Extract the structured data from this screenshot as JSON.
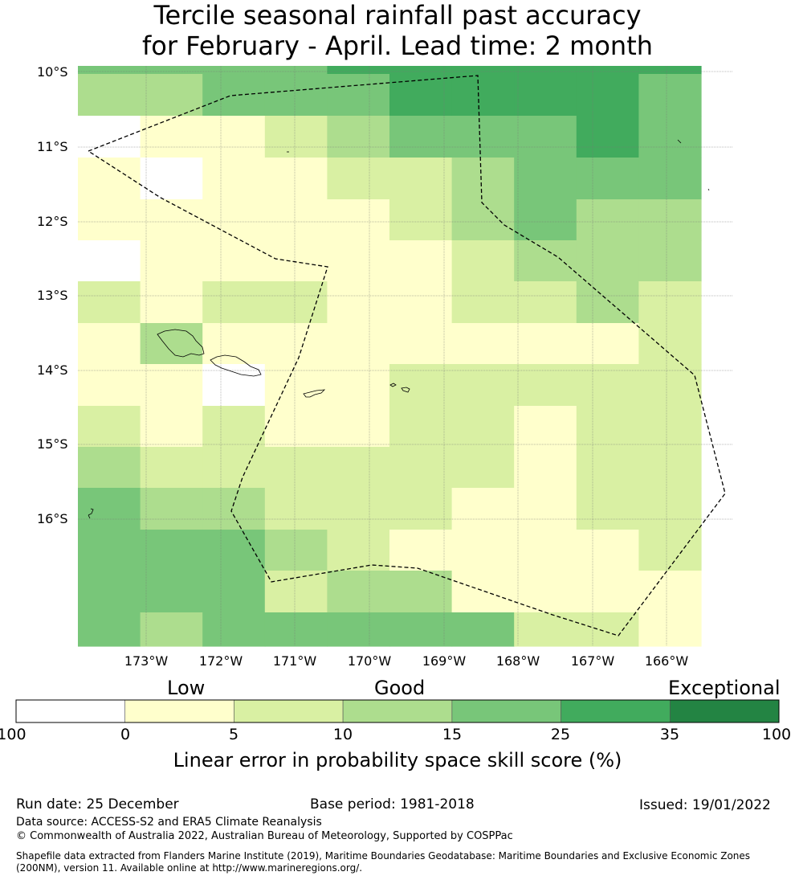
{
  "title": {
    "line1": "Tercile seasonal rainfall past accuracy",
    "line2": "for February - April. Lead time: 2 month"
  },
  "map": {
    "lat_labels": [
      "10°S",
      "11°S",
      "12°S",
      "13°S",
      "14°S",
      "15°S",
      "16°S"
    ],
    "lon_labels": [
      "173°W",
      "172°W",
      "171°W",
      "170°W",
      "169°W",
      "168°W",
      "167°W",
      "166°W"
    ],
    "boundary_style": "dashed",
    "skill_grid_percent_classes": [
      [
        "10-15",
        "10-15",
        "15-25",
        "15-25",
        "15-25",
        "25-35",
        "25-35",
        "25-35",
        "25-35",
        "15-25"
      ],
      [
        "-100-0",
        "0-5",
        "0-5",
        "5-10",
        "10-15",
        "15-25",
        "15-25",
        "15-25",
        "25-35",
        "15-25"
      ],
      [
        "0-5",
        "-100-0",
        "0-5",
        "0-5",
        "5-10",
        "5-10",
        "10-15",
        "15-25",
        "15-25",
        "15-25"
      ],
      [
        "0-5",
        "0-5",
        "0-5",
        "0-5",
        "0-5",
        "5-10",
        "10-15",
        "15-25",
        "10-15",
        "10-15"
      ],
      [
        "-100-0",
        "0-5",
        "0-5",
        "0-5",
        "0-5",
        "0-5",
        "5-10",
        "10-15",
        "10-15",
        "10-15"
      ],
      [
        "5-10",
        "0-5",
        "5-10",
        "5-10",
        "0-5",
        "0-5",
        "5-10",
        "5-10",
        "10-15",
        "5-10"
      ],
      [
        "0-5",
        "10-15",
        "0-5",
        "0-5",
        "0-5",
        "0-5",
        "0-5",
        "0-5",
        "0-5",
        "5-10"
      ],
      [
        "0-5",
        "0-5",
        "-100-0",
        "0-5",
        "0-5",
        "5-10",
        "5-10",
        "5-10",
        "5-10",
        "5-10"
      ],
      [
        "5-10",
        "0-5",
        "5-10",
        "0-5",
        "0-5",
        "5-10",
        "5-10",
        "0-5",
        "5-10",
        "5-10"
      ],
      [
        "10-15",
        "5-10",
        "5-10",
        "5-10",
        "5-10",
        "5-10",
        "5-10",
        "0-5",
        "5-10",
        "5-10"
      ],
      [
        "15-25",
        "10-15",
        "10-15",
        "5-10",
        "5-10",
        "5-10",
        "0-5",
        "0-5",
        "5-10",
        "5-10"
      ],
      [
        "15-25",
        "15-25",
        "15-25",
        "10-15",
        "5-10",
        "0-5",
        "0-5",
        "0-5",
        "0-5",
        "5-10"
      ],
      [
        "15-25",
        "15-25",
        "15-25",
        "5-10",
        "10-15",
        "10-15",
        "0-5",
        "0-5",
        "0-5",
        "0-5"
      ],
      [
        "15-25",
        "10-15",
        "15-25",
        "15-25",
        "15-25",
        "15-25",
        "15-25",
        "5-10",
        "5-10",
        "0-5"
      ]
    ]
  },
  "colorbar": {
    "words": {
      "low": "Low",
      "good": "Good",
      "exceptional": "Exceptional"
    },
    "ticks": [
      "-100",
      "0",
      "5",
      "10",
      "15",
      "25",
      "35",
      "100"
    ],
    "colors": [
      "#ffffff",
      "#ffffcc",
      "#d9f0a3",
      "#addd8e",
      "#78c679",
      "#41ab5d",
      "#238443"
    ],
    "label": "Linear error in probability space skill score (%)"
  },
  "footer": {
    "run_date": "Run date: 25 December",
    "base_period": "Base period: 1981-2018",
    "issued": "Issued: 19/01/2022",
    "data_source": "Data source: ACCESS-S2 and ERA5 Climate Reanalysis",
    "copyright": "© Commonwealth of Australia 2022, Australian Bureau of Meteorology, Supported by COSPPac",
    "shapefile_1": "Shapefile data extracted from Flanders Marine Institute (2019), Maritime Boundaries Geodatabase: Maritime Boundaries and Exclusive Economic Zones",
    "shapefile_2": "(200NM), version 11. Available online at http://www.marineregions.org/."
  }
}
